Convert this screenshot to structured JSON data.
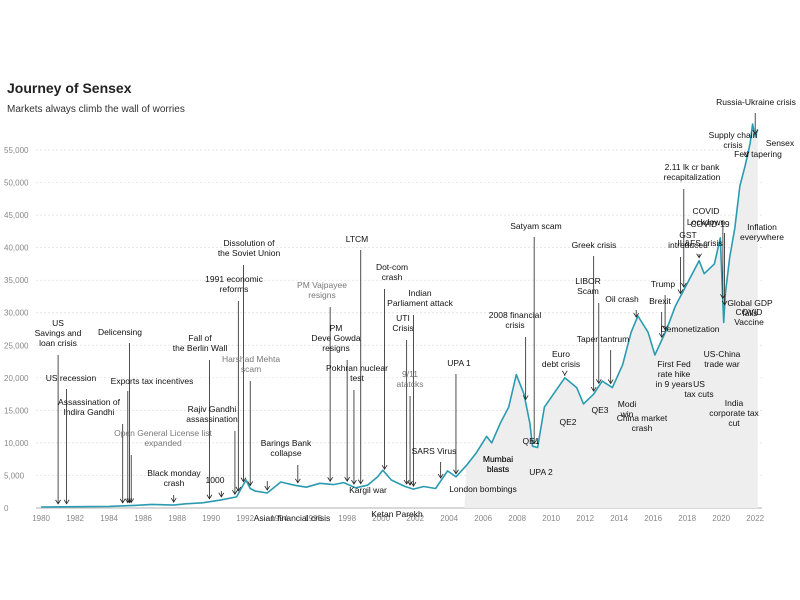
{
  "chart_data": {
    "type": "line",
    "title": "Journey of Sensex",
    "subtitle": "Markets always climb the wall of worries",
    "xlabel": "",
    "ylabel": "",
    "xlim": [
      1979.7,
      2022.4
    ],
    "ylim": [
      0,
      55000
    ],
    "x_ticks": [
      1980,
      1982,
      1984,
      1986,
      1988,
      1990,
      1992,
      1994,
      1996,
      1998,
      2000,
      2002,
      2004,
      2006,
      2008,
      2010,
      2012,
      2014,
      2016,
      2018,
      2020,
      2022
    ],
    "x_tick_labels": [
      "1980",
      "1982",
      "1984",
      "1986",
      "1988",
      "1990",
      "1992",
      "1994",
      "1996",
      "1998",
      "2000",
      "2002",
      "2004",
      "2006",
      "2008",
      "2010",
      "2012",
      "2014",
      "2016",
      "2018",
      "2020",
      "2022"
    ],
    "y_ticks": [
      0,
      5000,
      10000,
      15000,
      20000,
      25000,
      30000,
      35000,
      40000,
      45000,
      50000,
      55000
    ],
    "y_tick_labels": [
      "0",
      "5,000",
      "10,000",
      "15,000",
      "20,000",
      "25,000",
      "30,000",
      "35,000",
      "40,000",
      "45,000",
      "50,000",
      "55,000"
    ],
    "grid": true,
    "colors": {
      "line": "#2a9bb0",
      "area": "#eeeeee",
      "annotation": "#222222"
    },
    "series": [
      {
        "name": "Sensex",
        "x": [
          1980,
          1982,
          1984,
          1985.5,
          1986.5,
          1987.8,
          1988.5,
          1989.5,
          1990.5,
          1991.5,
          1992.05,
          1992.3,
          1992.6,
          1993.3,
          1994.1,
          1994.9,
          1995.6,
          1996.4,
          1997.2,
          1997.8,
          1998.5,
          1999.2,
          1999.8,
          2000.1,
          2000.6,
          2001.4,
          2001.9,
          2002.5,
          2003.2,
          2003.9,
          2004.4,
          2005.0,
          2005.6,
          2006.2,
          2006.5,
          2007.0,
          2007.5,
          2007.95,
          2008.4,
          2008.75,
          2008.9,
          2009.2,
          2009.6,
          2010.0,
          2010.8,
          2011.5,
          2011.9,
          2012.5,
          2013.0,
          2013.6,
          2014.2,
          2014.7,
          2015.1,
          2015.7,
          2016.1,
          2016.8,
          2017.3,
          2017.9,
          2018.3,
          2018.7,
          2019.0,
          2019.6,
          2019.95,
          2020.15,
          2020.25,
          2020.5,
          2020.8,
          2021.1,
          2021.4,
          2021.7,
          2021.85,
          2022.0,
          2022.15
        ],
        "y": [
          150,
          200,
          250,
          400,
          550,
          450,
          650,
          800,
          1200,
          1700,
          4300,
          3000,
          2600,
          2300,
          4000,
          3500,
          3200,
          3800,
          3600,
          3900,
          3100,
          3500,
          4800,
          5800,
          4300,
          3300,
          2900,
          3300,
          3000,
          5700,
          4800,
          6500,
          8500,
          11000,
          10000,
          13000,
          15500,
          20500,
          17500,
          13000,
          9500,
          9300,
          15500,
          17000,
          20000,
          18500,
          16000,
          17500,
          19500,
          18500,
          22000,
          27000,
          29500,
          27000,
          23500,
          27500,
          31000,
          34000,
          36000,
          38000,
          36000,
          37500,
          41500,
          28500,
          33000,
          38500,
          43000,
          49500,
          52500,
          56000,
          59000,
          57000,
          58200
        ]
      }
    ],
    "annotations": [
      {
        "text": "US\nSavings and\nloan crisis",
        "year": 1981.0
      },
      {
        "text": "US recession",
        "year": 1981.5
      },
      {
        "text": "Assassination of\nIndira Gandhi",
        "year": 1984.8
      },
      {
        "text": "Delicensing",
        "year": 1985.2
      },
      {
        "text": "Exports tax incentives",
        "year": 1985.1
      },
      {
        "text": "Open General License list\nexpanded",
        "year": 1985.3
      },
      {
        "text": "Black monday\ncrash",
        "year": 1987.8
      },
      {
        "text": "Fall of\nthe Berlin Wall",
        "year": 1989.9
      },
      {
        "text": "1000",
        "year": 1990.6
      },
      {
        "text": "Rajiv Gandhi\nassassination",
        "year": 1991.4
      },
      {
        "text": "1991 economic\nreforms",
        "year": 1991.6
      },
      {
        "text": "Dissolution of\nthe Soviet Union",
        "year": 1991.9
      },
      {
        "text": "Harshad Mehta\nscam",
        "year": 1992.3
      },
      {
        "text": "Mumbai\nblasts",
        "year": 1993.3
      },
      {
        "text": "Asian financial crisis",
        "year": 1997.5
      },
      {
        "text": "Barings Bank\ncollapse",
        "year": 1995.1
      },
      {
        "text": "PM Vajpayee\nresigns",
        "year": 1997.0
      },
      {
        "text": "PM\nDeve Gowda\nresigns",
        "year": 1998.0
      },
      {
        "text": "LTCM",
        "year": 1998.8
      },
      {
        "text": "Pokhran nuclear\ntest",
        "year": 1998.4
      },
      {
        "text": "Kargil war",
        "year": 1999.4
      },
      {
        "text": "Dot-com\ncrash",
        "year": 2000.2
      },
      {
        "text": "Indian\nParliament attack",
        "year": 2001.9
      },
      {
        "text": "UTI\nCrisis",
        "year": 2001.5
      },
      {
        "text": "9/11\natatcks",
        "year": 2001.7
      },
      {
        "text": "Ketan Parekh",
        "year": 2001.2
      },
      {
        "text": "SARS Virus",
        "year": 2003.5
      },
      {
        "text": "UPA 1",
        "year": 2004.4
      },
      {
        "text": "London bombings",
        "year": 2005.5
      },
      {
        "text": "Mumbai\nblasts",
        "year": 2006.5
      },
      {
        "text": "2008 financial\ncrisis",
        "year": 2008.5
      },
      {
        "text": "Satyam scam",
        "year": 2009.0
      },
      {
        "text": "QE1",
        "year": 2009.2
      },
      {
        "text": "UPA 2",
        "year": 2009.4
      },
      {
        "text": "Euro\ndebt crisis",
        "year": 2010.8
      },
      {
        "text": "QE2",
        "year": 2010.7
      },
      {
        "text": "Greek crisis",
        "year": 2012.5
      },
      {
        "text": "LIBOR\nScam",
        "year": 2012.8
      },
      {
        "text": "Taper tantrum",
        "year": 2013.5
      },
      {
        "text": "QE3",
        "year": 2012.7
      },
      {
        "text": "Modi\nwin",
        "year": 2014.4
      },
      {
        "text": "Oil crash",
        "year": 2015.0
      },
      {
        "text": "China market\ncrash",
        "year": 2015.6
      },
      {
        "text": "Trump",
        "year": 2016.7
      },
      {
        "text": "Brexit",
        "year": 2016.5
      },
      {
        "text": "Demonetization",
        "year": 2016.9
      },
      {
        "text": "GST\nintroduced",
        "year": 2017.6
      },
      {
        "text": "First Fed\nrate hike\nin 9 years",
        "year": 2015.9
      },
      {
        "text": "US\ntax cuts",
        "year": 2017.9
      },
      {
        "text": "IL&FS crisis",
        "year": 2018.7
      },
      {
        "text": "US-China\ntrade war",
        "year": 2018.3
      },
      {
        "text": "2.11 lk cr bank\nrecapitalization",
        "year": 2017.8
      },
      {
        "text": "Lockdown",
        "year": 2020.2
      },
      {
        "text": "COVID",
        "year": 2020.1
      },
      {
        "text": "COVID-19",
        "year": 2020.0
      },
      {
        "text": "India\ncorporate tax\ncut",
        "year": 2019.7
      },
      {
        "text": "Global GDP\nfalls",
        "year": 2020.3
      },
      {
        "text": "COVID\nVaccine",
        "year": 2020.9
      },
      {
        "text": "Inflation\neverywhere",
        "year": 2021.4
      },
      {
        "text": "Supply chain\ncrisis",
        "year": 2021.5
      },
      {
        "text": "Fed tapering",
        "year": 2021.6
      },
      {
        "text": "Russia-Ukraine crisis",
        "year": 2022.0
      },
      {
        "text": "Sensex",
        "year": 2022.2
      }
    ]
  }
}
